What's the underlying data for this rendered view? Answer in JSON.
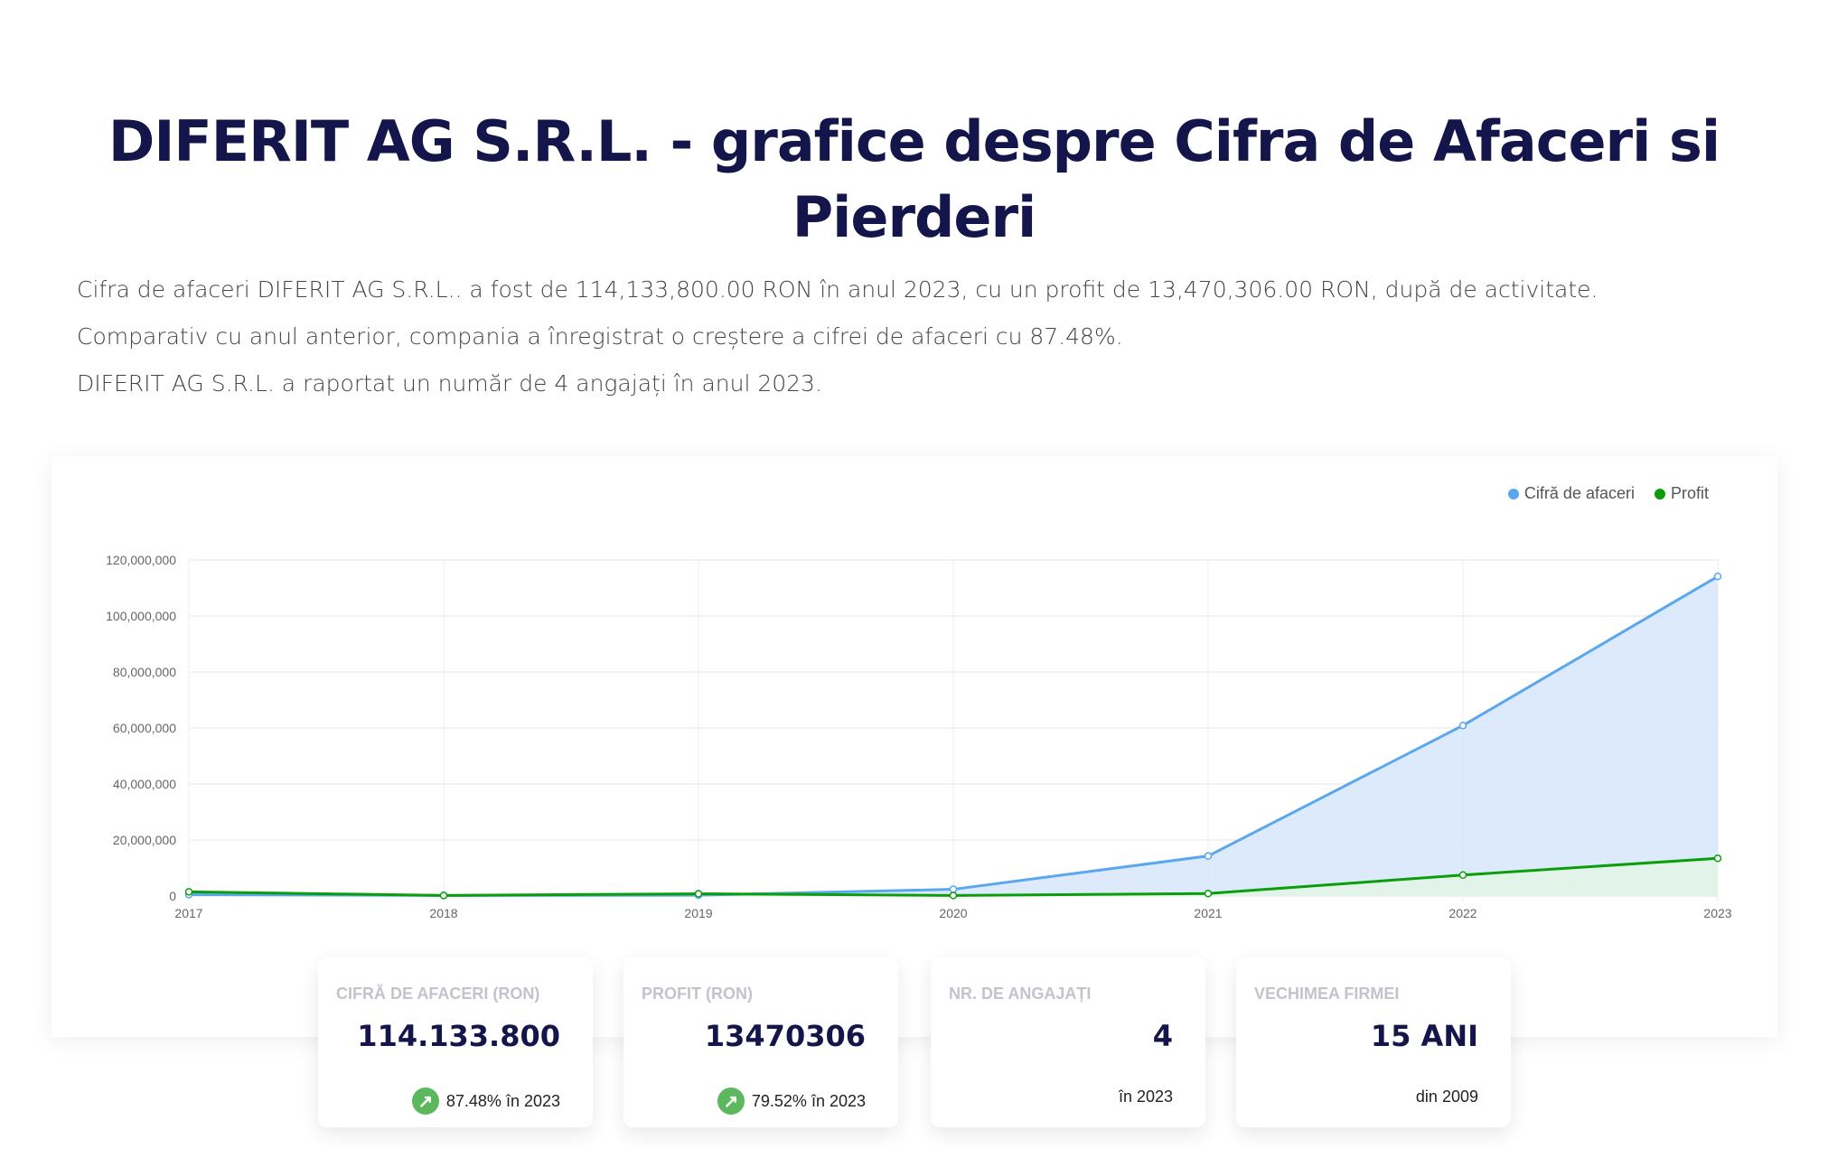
{
  "page": {
    "title": "DIFERIT AG S.R.L. - grafice despre Cifra de Afaceri si Pierderi",
    "lines": [
      "Cifra de afaceri DIFERIT AG S.R.L.. a fost de 114,133,800.00 RON în anul 2023, cu un profit de 13,470,306.00 RON, după de activitate.",
      "Comparativ cu anul anterior, compania a înregistrat o creștere a cifrei de afaceri cu 87.48%.",
      "DIFERIT AG S.R.L. a raportat un număr de 4 angajați în anul 2023."
    ]
  },
  "chart_data": {
    "type": "area",
    "categories": [
      "2017",
      "2018",
      "2019",
      "2020",
      "2021",
      "2022",
      "2023"
    ],
    "ylim": [
      0,
      120000000
    ],
    "yticks": [
      "0",
      "20,000,000",
      "40,000,000",
      "60,000,000",
      "80,000,000",
      "100,000,000",
      "120,000,000"
    ],
    "grid": true,
    "legend": "top-right",
    "series": [
      {
        "name": "Cifră de afaceri",
        "color": "#5aa7ee",
        "fill": "#d3e5fb",
        "values": [
          500000,
          200000,
          300000,
          2400000,
          14300000,
          60900000,
          114133800
        ]
      },
      {
        "name": "Profit",
        "color": "#0a9e0a",
        "fill": "#e4f6e4",
        "values": [
          1500000,
          200000,
          800000,
          200000,
          900000,
          7500000,
          13470306
        ]
      }
    ]
  },
  "stats": [
    {
      "label": "CIFRĂ DE AFACERI (RON)",
      "value": "114.133.800",
      "sub": "87.48% în 2023",
      "icon": "arrow-up-right-icon"
    },
    {
      "label": "PROFIT (RON)",
      "value": "13470306",
      "sub": "79.52% în 2023",
      "icon": "arrow-up-right-icon"
    },
    {
      "label": "NR. DE ANGAJAȚI",
      "value": "4",
      "sub": "în 2023"
    },
    {
      "label": "VECHIMEA FIRMEI",
      "value": "15 ANI",
      "sub": "din 2009"
    }
  ]
}
